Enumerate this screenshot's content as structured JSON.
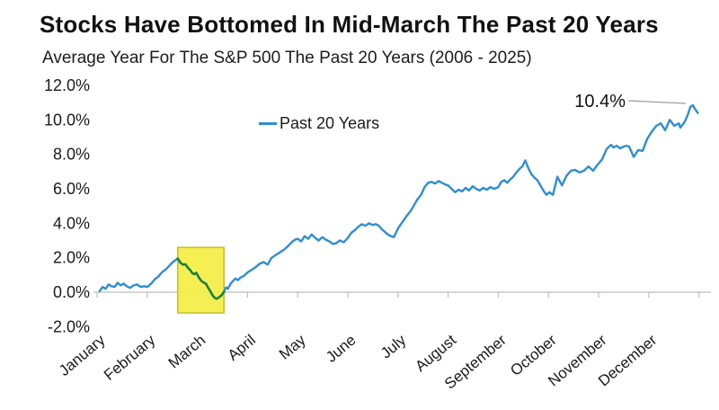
{
  "header": {
    "title": "Stocks Have Bottomed In Mid-March The Past 20 Years",
    "subtitle": "Average Year For The S&P 500 The Past 20 Years (2006 - 2025)"
  },
  "legend": {
    "label": "Past 20 Years"
  },
  "annotation": {
    "label": "10.4%"
  },
  "colors": {
    "line_blue": "#2e8fd0",
    "line_green": "#1a8040",
    "highlight_fill": "#f5ee44",
    "highlight_border": "#c9c22e",
    "axis_line": "#c9c9c9",
    "tick": "#bfbfbf",
    "leader_line": "#9d9d9d",
    "text": "#1a1a1a"
  },
  "chart_data": {
    "type": "line",
    "title": "Stocks Have Bottomed In Mid-March The Past 20 Years",
    "subtitle": "Average Year For The S&P 500 The Past 20 Years (2006 - 2025)",
    "xlabel": "",
    "ylabel": "",
    "x_categories": [
      "January",
      "February",
      "March",
      "April",
      "May",
      "June",
      "July",
      "August",
      "September",
      "October",
      "November",
      "December"
    ],
    "ylim": [
      -2.0,
      12.0
    ],
    "yticks": [
      12,
      10,
      8,
      6,
      4,
      2,
      0,
      -2
    ],
    "ytick_suffix": "%",
    "grid": "zero-axis-only",
    "legend_position": "top-center",
    "legend_entries": [
      "Past 20 Years"
    ],
    "annotation": {
      "text": "10.4%",
      "meaning": "year-end average return",
      "x_month": 11.98,
      "y_value": 10.4
    },
    "highlight_box": {
      "x_months": [
        1.61,
        2.53
      ],
      "y_values": [
        -1.2,
        2.6
      ],
      "meaning": "mid-March bottom zone"
    },
    "series": [
      {
        "name": "Past 20 Years",
        "highlight_x_months": [
          1.61,
          2.53
        ],
        "points": [
          [
            0.05,
            0.05
          ],
          [
            0.11,
            0.3
          ],
          [
            0.17,
            0.2
          ],
          [
            0.23,
            0.45
          ],
          [
            0.29,
            0.35
          ],
          [
            0.35,
            0.3
          ],
          [
            0.41,
            0.55
          ],
          [
            0.47,
            0.4
          ],
          [
            0.53,
            0.5
          ],
          [
            0.59,
            0.35
          ],
          [
            0.66,
            0.25
          ],
          [
            0.73,
            0.4
          ],
          [
            0.8,
            0.45
          ],
          [
            0.87,
            0.3
          ],
          [
            0.94,
            0.35
          ],
          [
            1.0,
            0.3
          ],
          [
            1.08,
            0.5
          ],
          [
            1.15,
            0.75
          ],
          [
            1.22,
            0.9
          ],
          [
            1.29,
            1.15
          ],
          [
            1.36,
            1.3
          ],
          [
            1.43,
            1.5
          ],
          [
            1.5,
            1.72
          ],
          [
            1.56,
            1.85
          ],
          [
            1.61,
            1.95
          ],
          [
            1.66,
            1.72
          ],
          [
            1.71,
            1.6
          ],
          [
            1.76,
            1.62
          ],
          [
            1.81,
            1.42
          ],
          [
            1.86,
            1.28
          ],
          [
            1.9,
            1.1
          ],
          [
            1.94,
            1.05
          ],
          [
            1.98,
            1.12
          ],
          [
            2.03,
            0.85
          ],
          [
            2.08,
            0.65
          ],
          [
            2.13,
            0.55
          ],
          [
            2.17,
            0.5
          ],
          [
            2.21,
            0.28
          ],
          [
            2.25,
            0.1
          ],
          [
            2.29,
            -0.12
          ],
          [
            2.33,
            -0.28
          ],
          [
            2.38,
            -0.38
          ],
          [
            2.43,
            -0.3
          ],
          [
            2.48,
            -0.18
          ],
          [
            2.53,
            0.02
          ],
          [
            2.57,
            0.28
          ],
          [
            2.61,
            0.2
          ],
          [
            2.66,
            0.48
          ],
          [
            2.71,
            0.65
          ],
          [
            2.76,
            0.8
          ],
          [
            2.81,
            0.7
          ],
          [
            2.86,
            0.85
          ],
          [
            2.93,
            0.95
          ],
          [
            3.0,
            1.15
          ],
          [
            3.08,
            1.3
          ],
          [
            3.16,
            1.45
          ],
          [
            3.24,
            1.65
          ],
          [
            3.32,
            1.75
          ],
          [
            3.4,
            1.6
          ],
          [
            3.48,
            2.0
          ],
          [
            3.56,
            2.15
          ],
          [
            3.64,
            2.3
          ],
          [
            3.72,
            2.45
          ],
          [
            3.8,
            2.65
          ],
          [
            3.88,
            2.9
          ],
          [
            3.95,
            3.05
          ],
          [
            4.0,
            3.1
          ],
          [
            4.07,
            2.95
          ],
          [
            4.14,
            3.25
          ],
          [
            4.21,
            3.1
          ],
          [
            4.28,
            3.35
          ],
          [
            4.35,
            3.15
          ],
          [
            4.42,
            3.0
          ],
          [
            4.49,
            3.2
          ],
          [
            4.56,
            3.05
          ],
          [
            4.63,
            2.95
          ],
          [
            4.7,
            2.8
          ],
          [
            4.77,
            2.85
          ],
          [
            4.84,
            3.0
          ],
          [
            4.92,
            2.9
          ],
          [
            5.0,
            3.15
          ],
          [
            5.07,
            3.45
          ],
          [
            5.14,
            3.6
          ],
          [
            5.21,
            3.8
          ],
          [
            5.28,
            3.95
          ],
          [
            5.35,
            3.85
          ],
          [
            5.42,
            4.0
          ],
          [
            5.49,
            3.9
          ],
          [
            5.56,
            3.95
          ],
          [
            5.62,
            3.85
          ],
          [
            5.68,
            3.65
          ],
          [
            5.74,
            3.5
          ],
          [
            5.8,
            3.35
          ],
          [
            5.86,
            3.25
          ],
          [
            5.92,
            3.2
          ],
          [
            5.96,
            3.45
          ],
          [
            6.0,
            3.7
          ],
          [
            6.06,
            3.95
          ],
          [
            6.12,
            4.2
          ],
          [
            6.18,
            4.45
          ],
          [
            6.25,
            4.7
          ],
          [
            6.32,
            5.05
          ],
          [
            6.39,
            5.4
          ],
          [
            6.46,
            5.65
          ],
          [
            6.53,
            6.1
          ],
          [
            6.6,
            6.35
          ],
          [
            6.67,
            6.4
          ],
          [
            6.74,
            6.3
          ],
          [
            6.81,
            6.45
          ],
          [
            6.88,
            6.35
          ],
          [
            6.94,
            6.25
          ],
          [
            7.0,
            6.2
          ],
          [
            7.07,
            6.0
          ],
          [
            7.14,
            5.8
          ],
          [
            7.21,
            5.95
          ],
          [
            7.28,
            5.85
          ],
          [
            7.35,
            6.05
          ],
          [
            7.42,
            5.9
          ],
          [
            7.49,
            6.15
          ],
          [
            7.56,
            6.0
          ],
          [
            7.63,
            5.9
          ],
          [
            7.7,
            6.05
          ],
          [
            7.77,
            5.95
          ],
          [
            7.84,
            6.1
          ],
          [
            7.92,
            6.0
          ],
          [
            8.0,
            6.1
          ],
          [
            8.06,
            6.4
          ],
          [
            8.12,
            6.5
          ],
          [
            8.18,
            6.35
          ],
          [
            8.24,
            6.55
          ],
          [
            8.3,
            6.7
          ],
          [
            8.36,
            6.95
          ],
          [
            8.42,
            7.15
          ],
          [
            8.48,
            7.3
          ],
          [
            8.54,
            7.65
          ],
          [
            8.6,
            7.2
          ],
          [
            8.66,
            6.85
          ],
          [
            8.72,
            6.65
          ],
          [
            8.78,
            6.5
          ],
          [
            8.84,
            6.2
          ],
          [
            8.9,
            5.9
          ],
          [
            8.96,
            5.65
          ],
          [
            9.02,
            5.8
          ],
          [
            9.09,
            5.65
          ],
          [
            9.18,
            6.7
          ],
          [
            9.27,
            6.2
          ],
          [
            9.36,
            6.75
          ],
          [
            9.45,
            7.05
          ],
          [
            9.53,
            7.1
          ],
          [
            9.62,
            6.95
          ],
          [
            9.71,
            7.05
          ],
          [
            9.8,
            7.3
          ],
          [
            9.89,
            7.05
          ],
          [
            9.98,
            7.4
          ],
          [
            10.07,
            7.7
          ],
          [
            10.16,
            8.3
          ],
          [
            10.25,
            8.55
          ],
          [
            10.3,
            8.4
          ],
          [
            10.36,
            8.5
          ],
          [
            10.43,
            8.35
          ],
          [
            10.5,
            8.45
          ],
          [
            10.56,
            8.5
          ],
          [
            10.61,
            8.45
          ],
          [
            10.7,
            7.85
          ],
          [
            10.79,
            8.25
          ],
          [
            10.88,
            8.2
          ],
          [
            10.97,
            8.9
          ],
          [
            11.06,
            9.3
          ],
          [
            11.15,
            9.65
          ],
          [
            11.24,
            9.8
          ],
          [
            11.33,
            9.4
          ],
          [
            11.42,
            10.0
          ],
          [
            11.51,
            9.65
          ],
          [
            11.6,
            9.8
          ],
          [
            11.63,
            9.55
          ],
          [
            11.72,
            9.9
          ],
          [
            11.78,
            10.3
          ],
          [
            11.83,
            10.75
          ],
          [
            11.88,
            10.85
          ],
          [
            11.93,
            10.6
          ],
          [
            11.98,
            10.4
          ]
        ]
      }
    ]
  }
}
